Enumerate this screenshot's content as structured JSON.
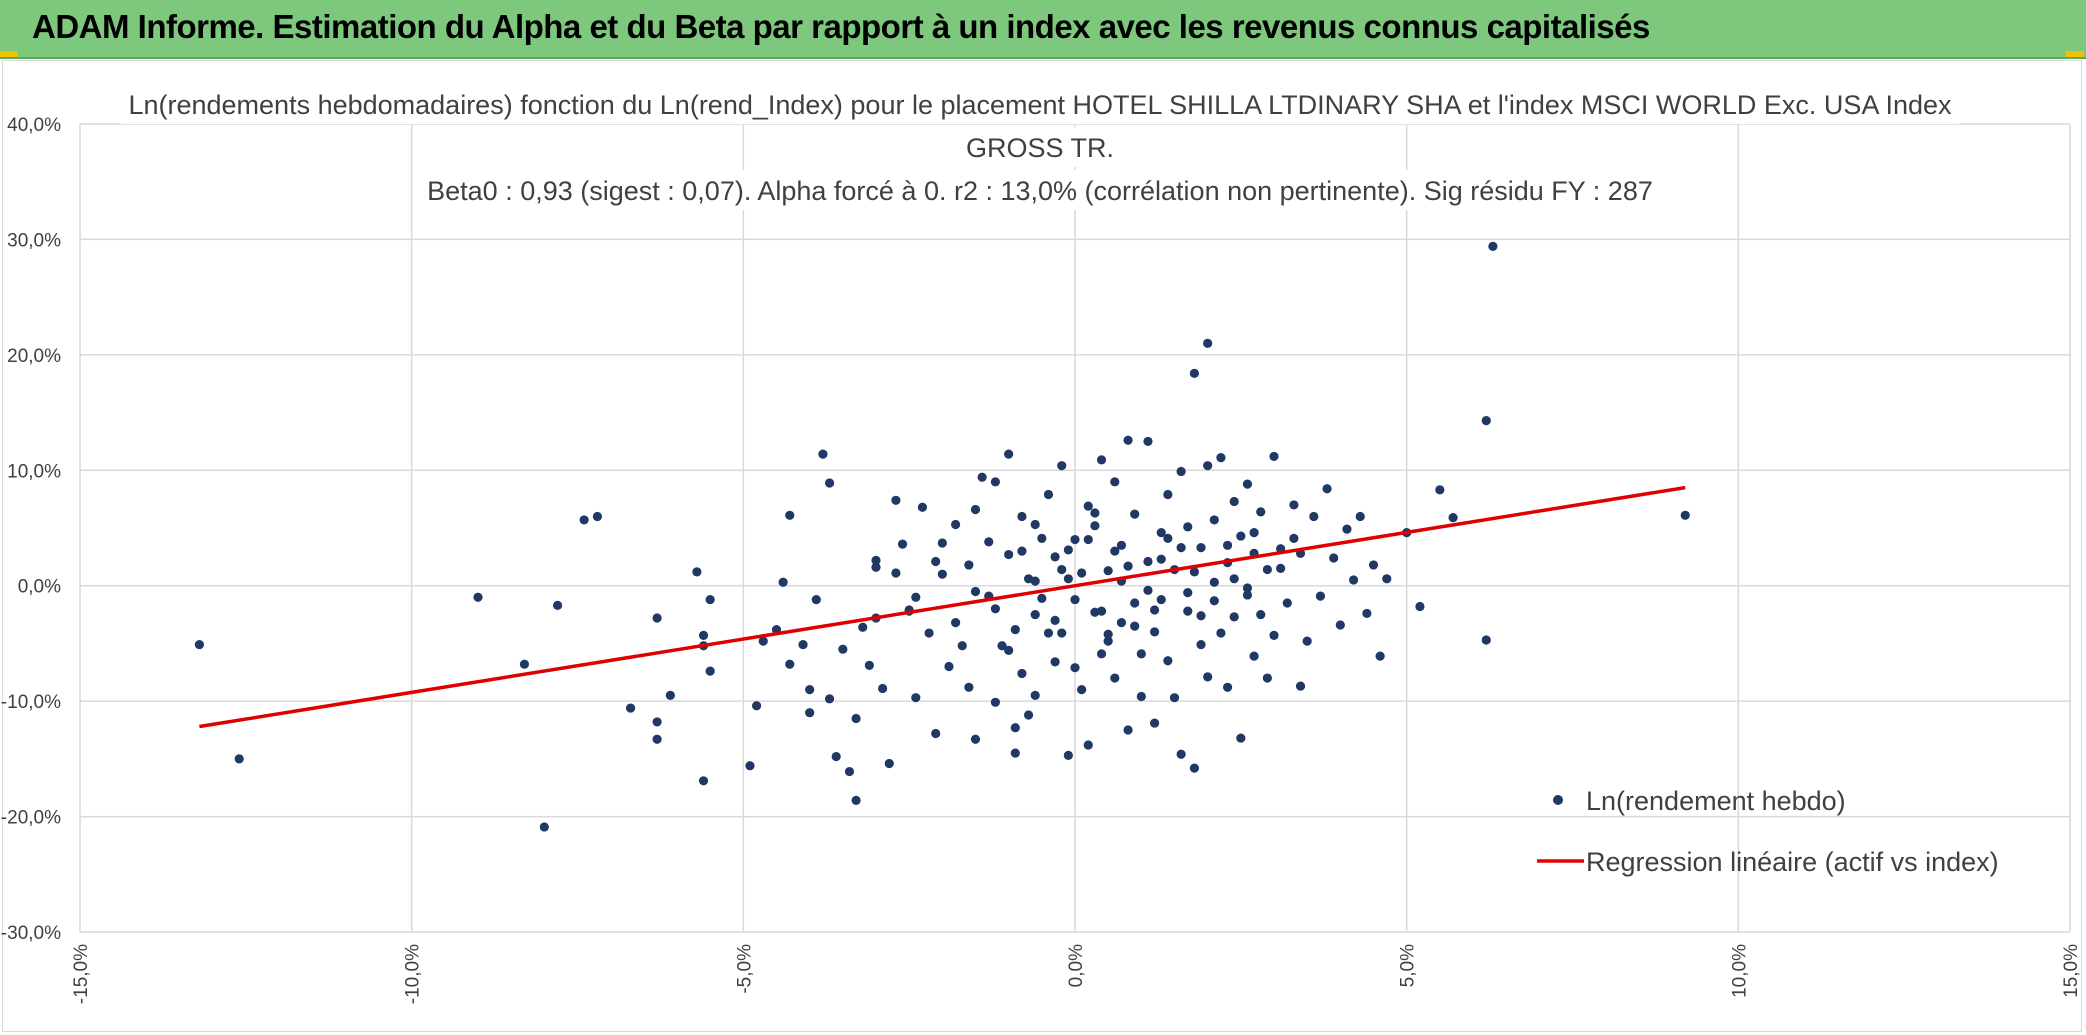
{
  "header": {
    "title": "ADAM Informe. Estimation du Alpha et du Beta par rapport à un index avec les revenus connus capitalisés"
  },
  "colors": {
    "header_bg": "#7dc87d",
    "points": "#203864",
    "regression": "#e00000",
    "grid": "#d9d9d9",
    "text": "#404040",
    "corner": "#f2c200"
  },
  "chart_data": {
    "type": "scatter",
    "title_lines": [
      "Ln(rendements hebdomadaires) fonction du Ln(rend_Index) pour le placement HOTEL SHILLA LTDINARY SHA et l'index MSCI WORLD Exc. USA Index",
      "GROSS TR.",
      "Beta0 : 0,93 (sigest : 0,07). Alpha forcé à 0. r2 : 13,0% (corrélation non pertinente). Sig résidu FY : 287"
    ],
    "xlim": [
      -0.15,
      0.15
    ],
    "ylim": [
      -0.3,
      0.4
    ],
    "x_ticks": [
      -0.15,
      -0.1,
      -0.05,
      0.0,
      0.05,
      0.1,
      0.15
    ],
    "x_tick_labels": [
      "-15,0%",
      "-10,0%",
      "-5,0%",
      "0,0%",
      "5,0%",
      "10,0%",
      "15,0%"
    ],
    "y_ticks": [
      -0.3,
      -0.2,
      -0.1,
      0.0,
      0.1,
      0.2,
      0.3,
      0.4
    ],
    "y_tick_labels": [
      "-30,0%",
      "-20,0%",
      "-10,0%",
      "0,0%",
      "10,0%",
      "20,0%",
      "30,0%",
      "40,0%"
    ],
    "grid": true,
    "legend_position": "bottom-right",
    "series": [
      {
        "name": "Ln(rendement hebdo)",
        "kind": "scatter",
        "points": [
          [
            -0.132,
            -0.051
          ],
          [
            -0.126,
            -0.15
          ],
          [
            -0.09,
            -0.01
          ],
          [
            -0.08,
            -0.209
          ],
          [
            -0.083,
            -0.068
          ],
          [
            -0.078,
            -0.017
          ],
          [
            -0.074,
            0.057
          ],
          [
            -0.072,
            0.06
          ],
          [
            -0.067,
            -0.106
          ],
          [
            -0.063,
            -0.028
          ],
          [
            -0.063,
            -0.133
          ],
          [
            -0.063,
            -0.118
          ],
          [
            -0.061,
            -0.095
          ],
          [
            -0.057,
            0.012
          ],
          [
            -0.056,
            -0.169
          ],
          [
            -0.056,
            -0.052
          ],
          [
            -0.056,
            -0.043
          ],
          [
            -0.055,
            -0.074
          ],
          [
            -0.055,
            -0.012
          ],
          [
            -0.049,
            -0.156
          ],
          [
            -0.048,
            -0.104
          ],
          [
            -0.047,
            -0.048
          ],
          [
            -0.045,
            -0.038
          ],
          [
            -0.044,
            0.003
          ],
          [
            -0.043,
            -0.068
          ],
          [
            -0.043,
            0.061
          ],
          [
            -0.041,
            -0.051
          ],
          [
            -0.04,
            -0.09
          ],
          [
            -0.04,
            -0.11
          ],
          [
            -0.039,
            -0.012
          ],
          [
            -0.038,
            0.114
          ],
          [
            -0.037,
            -0.098
          ],
          [
            -0.037,
            0.089
          ],
          [
            -0.036,
            -0.148
          ],
          [
            -0.035,
            -0.055
          ],
          [
            -0.034,
            -0.161
          ],
          [
            -0.033,
            -0.115
          ],
          [
            -0.033,
            -0.186
          ],
          [
            -0.032,
            -0.036
          ],
          [
            -0.031,
            -0.069
          ],
          [
            -0.03,
            0.022
          ],
          [
            -0.03,
            0.016
          ],
          [
            -0.029,
            -0.089
          ],
          [
            -0.028,
            -0.154
          ],
          [
            -0.027,
            0.074
          ],
          [
            -0.026,
            0.036
          ],
          [
            -0.025,
            -0.021
          ],
          [
            -0.024,
            -0.097
          ],
          [
            -0.023,
            0.068
          ],
          [
            -0.022,
            -0.041
          ],
          [
            -0.021,
            -0.128
          ],
          [
            -0.02,
            0.037
          ],
          [
            -0.019,
            -0.07
          ],
          [
            -0.018,
            0.053
          ],
          [
            -0.017,
            -0.052
          ],
          [
            -0.016,
            -0.088
          ],
          [
            -0.015,
            -0.133
          ],
          [
            -0.015,
            0.066
          ],
          [
            -0.014,
            0.094
          ],
          [
            -0.013,
            -0.009
          ],
          [
            -0.012,
            0.09
          ],
          [
            -0.012,
            -0.101
          ],
          [
            -0.011,
            -0.052
          ],
          [
            -0.01,
            -0.056
          ],
          [
            -0.01,
            0.114
          ],
          [
            -0.009,
            -0.145
          ],
          [
            -0.009,
            -0.123
          ],
          [
            -0.008,
            -0.076
          ],
          [
            -0.008,
            0.06
          ],
          [
            -0.007,
            -0.112
          ],
          [
            -0.006,
            0.004
          ],
          [
            -0.006,
            -0.095
          ],
          [
            -0.005,
            0.041
          ],
          [
            -0.005,
            -0.011
          ],
          [
            -0.004,
            0.079
          ],
          [
            -0.004,
            -0.041
          ],
          [
            -0.003,
            0.025
          ],
          [
            -0.003,
            -0.066
          ],
          [
            -0.002,
            0.104
          ],
          [
            -0.002,
            -0.041
          ],
          [
            -0.001,
            -0.147
          ],
          [
            -0.001,
            0.006
          ],
          [
            0.0,
            -0.071
          ],
          [
            0.0,
            0.04
          ],
          [
            0.001,
            0.011
          ],
          [
            0.001,
            -0.09
          ],
          [
            0.002,
            -0.138
          ],
          [
            0.002,
            0.069
          ],
          [
            0.003,
            -0.023
          ],
          [
            0.003,
            0.052
          ],
          [
            0.004,
            -0.059
          ],
          [
            0.004,
            0.109
          ],
          [
            0.005,
            0.013
          ],
          [
            0.005,
            -0.042
          ],
          [
            0.006,
            -0.08
          ],
          [
            0.006,
            0.09
          ],
          [
            0.007,
            -0.032
          ],
          [
            0.007,
            0.035
          ],
          [
            0.008,
            -0.125
          ],
          [
            0.008,
            0.126
          ],
          [
            0.009,
            -0.015
          ],
          [
            0.009,
            0.062
          ],
          [
            0.01,
            -0.059
          ],
          [
            0.01,
            -0.096
          ],
          [
            0.011,
            0.021
          ],
          [
            0.011,
            0.125
          ],
          [
            0.012,
            -0.04
          ],
          [
            0.012,
            -0.119
          ],
          [
            0.013,
            0.046
          ],
          [
            0.013,
            -0.012
          ],
          [
            0.014,
            0.079
          ],
          [
            0.014,
            -0.065
          ],
          [
            0.015,
            0.014
          ],
          [
            0.015,
            -0.097
          ],
          [
            0.016,
            -0.146
          ],
          [
            0.016,
            0.099
          ],
          [
            0.017,
            -0.022
          ],
          [
            0.017,
            0.051
          ],
          [
            0.018,
            -0.158
          ],
          [
            0.018,
            0.184
          ],
          [
            0.019,
            -0.051
          ],
          [
            0.019,
            0.033
          ],
          [
            0.02,
            0.104
          ],
          [
            0.02,
            -0.079
          ],
          [
            0.021,
            0.003
          ],
          [
            0.021,
            0.057
          ],
          [
            0.022,
            -0.041
          ],
          [
            0.022,
            0.111
          ],
          [
            0.023,
            -0.088
          ],
          [
            0.023,
            0.02
          ],
          [
            0.024,
            0.073
          ],
          [
            0.024,
            -0.027
          ],
          [
            0.025,
            -0.132
          ],
          [
            0.025,
            0.043
          ],
          [
            0.026,
            -0.008
          ],
          [
            0.026,
            0.088
          ],
          [
            0.027,
            -0.061
          ],
          [
            0.027,
            0.028
          ],
          [
            0.028,
            -0.025
          ],
          [
            0.028,
            0.064
          ],
          [
            0.029,
            0.014
          ],
          [
            0.029,
            -0.08
          ],
          [
            0.03,
            0.112
          ],
          [
            0.03,
            -0.043
          ],
          [
            0.031,
            0.032
          ],
          [
            0.032,
            -0.015
          ],
          [
            0.033,
            0.07
          ],
          [
            0.034,
            -0.087
          ],
          [
            0.034,
            0.028
          ],
          [
            0.035,
            -0.048
          ],
          [
            0.036,
            0.06
          ],
          [
            0.037,
            -0.009
          ],
          [
            0.038,
            0.084
          ],
          [
            0.039,
            0.024
          ],
          [
            0.04,
            -0.034
          ],
          [
            0.041,
            0.049
          ],
          [
            0.042,
            0.005
          ],
          [
            0.043,
            0.06
          ],
          [
            0.044,
            -0.024
          ],
          [
            0.045,
            0.018
          ],
          [
            0.046,
            -0.061
          ],
          [
            0.047,
            0.006
          ],
          [
            0.05,
            0.046
          ],
          [
            0.052,
            -0.018
          ],
          [
            0.055,
            0.083
          ],
          [
            0.057,
            0.059
          ],
          [
            0.062,
            -0.047
          ],
          [
            0.062,
            0.143
          ],
          [
            0.063,
            0.294
          ],
          [
            0.02,
            0.21
          ],
          [
            0.092,
            0.061
          ],
          [
            -0.006,
            0.053
          ],
          [
            0.004,
            -0.022
          ],
          [
            -0.008,
            0.03
          ],
          [
            0.006,
            0.03
          ],
          [
            -0.016,
            0.018
          ],
          [
            0.018,
            0.012
          ],
          [
            -0.003,
            -0.03
          ],
          [
            0.011,
            -0.004
          ],
          [
            -0.012,
            -0.02
          ],
          [
            0.013,
            0.023
          ],
          [
            -0.02,
            0.01
          ],
          [
            0.024,
            0.006
          ],
          [
            0.007,
            0.004
          ],
          [
            -0.002,
            0.014
          ],
          [
            0.0,
            -0.012
          ],
          [
            0.016,
            0.033
          ],
          [
            -0.01,
            0.027
          ],
          [
            0.021,
            -0.013
          ],
          [
            -0.018,
            -0.032
          ],
          [
            0.027,
            0.046
          ],
          [
            -0.024,
            -0.01
          ],
          [
            0.003,
            0.063
          ],
          [
            0.009,
            -0.035
          ],
          [
            -0.006,
            -0.025
          ],
          [
            0.014,
            0.041
          ],
          [
            -0.013,
            0.038
          ],
          [
            0.019,
            -0.026
          ],
          [
            -0.027,
            0.011
          ],
          [
            0.031,
            0.015
          ],
          [
            -0.001,
            0.031
          ],
          [
            0.008,
            0.017
          ],
          [
            -0.007,
            0.006
          ],
          [
            0.012,
            -0.021
          ],
          [
            -0.015,
            -0.005
          ],
          [
            0.023,
            0.035
          ],
          [
            -0.021,
            0.021
          ],
          [
            0.005,
            -0.048
          ],
          [
            0.002,
            0.04
          ],
          [
            -0.009,
            -0.038
          ],
          [
            0.017,
            -0.006
          ],
          [
            -0.025,
            -0.022
          ],
          [
            0.026,
            -0.002
          ],
          [
            -0.03,
            -0.028
          ],
          [
            0.033,
            0.041
          ]
        ]
      },
      {
        "name": "Regression linéaire (actif vs index)",
        "kind": "line",
        "points": [
          [
            -0.132,
            -0.122
          ],
          [
            0.092,
            0.085
          ]
        ]
      }
    ]
  }
}
